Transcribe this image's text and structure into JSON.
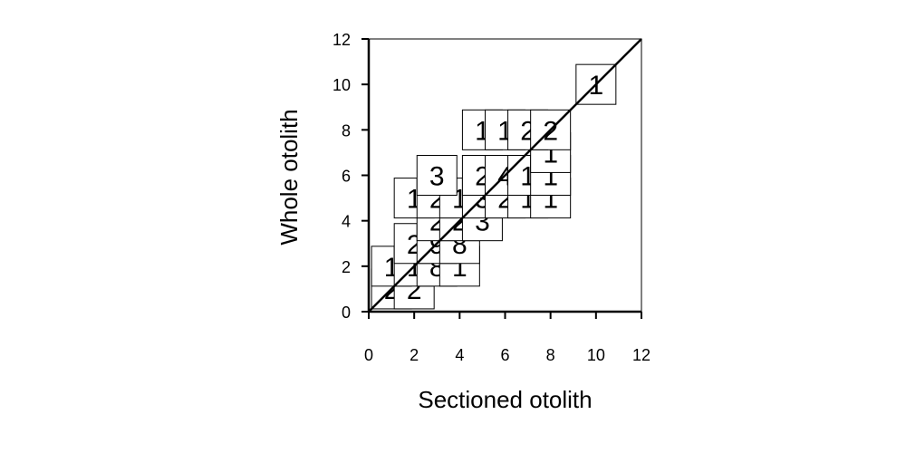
{
  "chart_data": {
    "type": "scatter",
    "subtype": "bubble-count-plot",
    "title": "",
    "xlabel": "Sectioned otolith",
    "ylabel": "Whole otolith",
    "xlim": [
      0,
      12
    ],
    "ylim": [
      0,
      12
    ],
    "xticks": [
      "0",
      "2",
      "4",
      "6",
      "8",
      "10",
      "12"
    ],
    "yticks": [
      "0",
      "2",
      "4",
      "6",
      "8",
      "10",
      "12"
    ],
    "reference_line": "1:1",
    "grid": false,
    "points": [
      {
        "x": 1,
        "y": 1,
        "count": "2"
      },
      {
        "x": 2,
        "y": 1,
        "count": "2"
      },
      {
        "x": 1,
        "y": 2,
        "count": "1"
      },
      {
        "x": 2,
        "y": 2,
        "count": "1"
      },
      {
        "x": 3,
        "y": 2,
        "count": "8"
      },
      {
        "x": 4,
        "y": 2,
        "count": "1"
      },
      {
        "x": 2,
        "y": 3,
        "count": "2"
      },
      {
        "x": 3,
        "y": 3,
        "count": "9"
      },
      {
        "x": 4,
        "y": 3,
        "count": "8"
      },
      {
        "x": 3,
        "y": 4,
        "count": "2"
      },
      {
        "x": 4,
        "y": 4,
        "count": "2"
      },
      {
        "x": 5,
        "y": 4,
        "count": "3"
      },
      {
        "x": 2,
        "y": 5,
        "count": "1"
      },
      {
        "x": 3,
        "y": 5,
        "count": "2"
      },
      {
        "x": 4,
        "y": 5,
        "count": "1"
      },
      {
        "x": 5,
        "y": 5,
        "count": "3"
      },
      {
        "x": 6,
        "y": 5,
        "count": "2"
      },
      {
        "x": 7,
        "y": 5,
        "count": "1"
      },
      {
        "x": 8,
        "y": 5,
        "count": "1"
      },
      {
        "x": 3,
        "y": 6,
        "count": "3"
      },
      {
        "x": 5,
        "y": 6,
        "count": "2"
      },
      {
        "x": 6,
        "y": 6,
        "count": "4"
      },
      {
        "x": 7,
        "y": 6,
        "count": "1"
      },
      {
        "x": 8,
        "y": 6,
        "count": "1"
      },
      {
        "x": 8,
        "y": 7,
        "count": "1"
      },
      {
        "x": 5,
        "y": 8,
        "count": "1"
      },
      {
        "x": 6,
        "y": 8,
        "count": "1"
      },
      {
        "x": 7,
        "y": 8,
        "count": "2"
      },
      {
        "x": 8,
        "y": 8,
        "count": "2"
      },
      {
        "x": 10,
        "y": 10,
        "count": "1"
      }
    ]
  }
}
